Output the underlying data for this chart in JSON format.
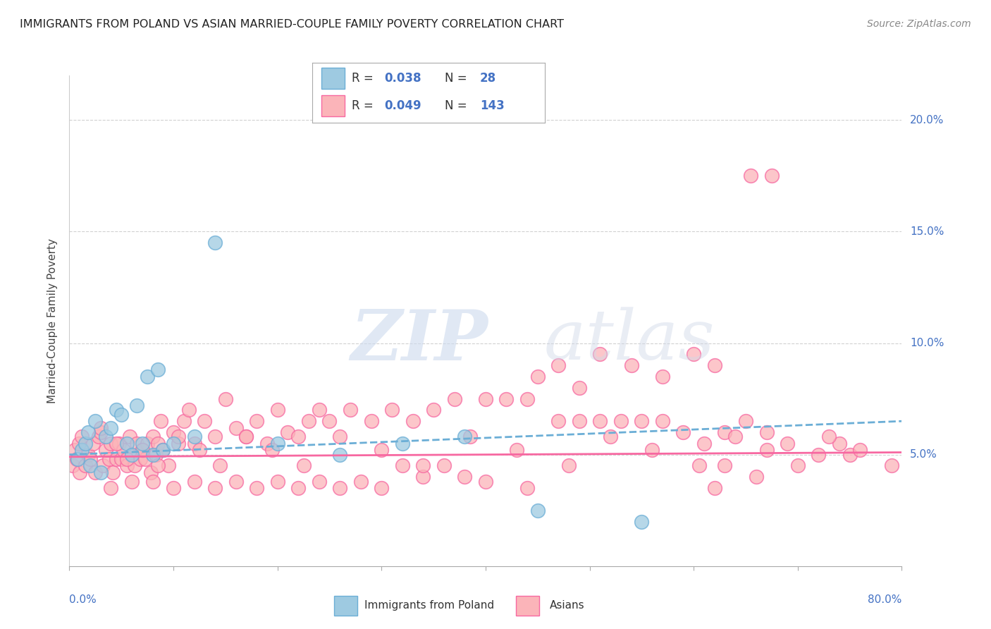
{
  "title": "IMMIGRANTS FROM POLAND VS ASIAN MARRIED-COUPLE FAMILY POVERTY CORRELATION CHART",
  "source": "Source: ZipAtlas.com",
  "ylabel": "Married-Couple Family Poverty",
  "xlim": [
    0.0,
    80.0
  ],
  "ylim": [
    0.0,
    22.0
  ],
  "yticks": [
    5.0,
    10.0,
    15.0,
    20.0
  ],
  "ytick_labels": [
    "5.0%",
    "10.0%",
    "15.0%",
    "20.0%"
  ],
  "color_poland": "#9ecae1",
  "color_poland_edge": "#6baed6",
  "color_asians": "#fbb4b9",
  "color_asians_edge": "#f768a1",
  "color_poland_line": "#6baed6",
  "color_asians_line": "#f768a1",
  "poland_x": [
    0.8,
    1.2,
    1.5,
    1.8,
    2.0,
    2.5,
    3.0,
    3.5,
    4.0,
    4.5,
    5.0,
    5.5,
    6.0,
    6.5,
    7.0,
    7.5,
    8.0,
    8.5,
    9.0,
    10.0,
    12.0,
    14.0,
    20.0,
    26.0,
    32.0,
    38.0,
    45.0,
    55.0
  ],
  "poland_y": [
    4.8,
    5.2,
    5.5,
    6.0,
    4.5,
    6.5,
    4.2,
    5.8,
    6.2,
    7.0,
    6.8,
    5.5,
    5.0,
    7.2,
    5.5,
    8.5,
    5.0,
    8.8,
    5.2,
    5.5,
    5.8,
    14.5,
    5.5,
    5.0,
    5.5,
    5.8,
    2.5,
    2.0
  ],
  "asians_x": [
    0.3,
    0.5,
    0.7,
    0.9,
    1.0,
    1.2,
    1.5,
    1.8,
    2.0,
    2.3,
    2.5,
    2.8,
    3.0,
    3.2,
    3.5,
    3.8,
    4.0,
    4.2,
    4.5,
    4.8,
    5.0,
    5.2,
    5.5,
    5.8,
    6.0,
    6.3,
    6.5,
    6.8,
    7.0,
    7.3,
    7.5,
    7.8,
    8.0,
    8.3,
    8.5,
    8.8,
    9.0,
    9.5,
    10.0,
    10.5,
    11.0,
    11.5,
    12.0,
    13.0,
    14.0,
    15.0,
    16.0,
    17.0,
    18.0,
    19.0,
    20.0,
    21.0,
    22.0,
    23.0,
    24.0,
    25.0,
    27.0,
    29.0,
    31.0,
    33.0,
    35.0,
    37.0,
    40.0,
    42.0,
    44.0,
    47.0,
    49.0,
    51.0,
    53.0,
    55.0,
    57.0,
    59.0,
    61.0,
    63.0,
    65.0,
    67.0,
    69.0,
    72.0,
    74.0,
    75.0,
    45.0,
    47.0,
    49.0,
    51.0,
    54.0,
    57.0,
    60.0,
    62.0,
    65.5,
    67.5,
    32.0,
    34.0,
    36.0,
    38.0,
    40.0,
    44.0,
    20.0,
    22.0,
    24.0,
    26.0,
    28.0,
    30.0,
    14.0,
    16.0,
    18.0,
    8.0,
    10.0,
    12.0,
    4.0,
    6.0,
    63.0,
    66.0,
    62.0,
    3.0,
    4.5,
    5.5,
    7.0,
    8.5,
    10.5,
    12.5,
    14.5,
    17.0,
    19.5,
    22.5,
    26.0,
    30.0,
    34.0,
    38.5,
    43.0,
    48.0,
    52.0,
    56.0,
    60.5,
    64.0,
    67.0,
    70.0,
    73.0,
    76.0,
    79.0
  ],
  "asians_y": [
    4.5,
    5.2,
    4.8,
    5.5,
    4.2,
    5.8,
    4.5,
    5.0,
    4.8,
    5.5,
    4.2,
    5.8,
    6.0,
    4.5,
    5.2,
    4.8,
    5.5,
    4.2,
    4.8,
    5.5,
    4.8,
    5.2,
    4.5,
    5.8,
    5.0,
    4.5,
    5.5,
    4.8,
    5.2,
    4.8,
    5.5,
    4.2,
    5.8,
    5.0,
    5.5,
    6.5,
    5.2,
    4.5,
    6.0,
    5.5,
    6.5,
    7.0,
    5.5,
    6.5,
    5.8,
    7.5,
    6.2,
    5.8,
    6.5,
    5.5,
    7.0,
    6.0,
    5.8,
    6.5,
    7.0,
    6.5,
    7.0,
    6.5,
    7.0,
    6.5,
    7.0,
    7.5,
    7.5,
    7.5,
    7.5,
    6.5,
    6.5,
    6.5,
    6.5,
    6.5,
    6.5,
    6.0,
    5.5,
    6.0,
    6.5,
    6.0,
    5.5,
    5.0,
    5.5,
    5.0,
    8.5,
    9.0,
    8.0,
    9.5,
    9.0,
    8.5,
    9.5,
    9.0,
    17.5,
    17.5,
    4.5,
    4.0,
    4.5,
    4.0,
    3.8,
    3.5,
    3.8,
    3.5,
    3.8,
    3.5,
    3.8,
    3.5,
    3.5,
    3.8,
    3.5,
    3.8,
    3.5,
    3.8,
    3.5,
    3.8,
    4.5,
    4.0,
    3.5,
    6.2,
    5.5,
    4.8,
    5.2,
    4.5,
    5.8,
    5.2,
    4.5,
    5.8,
    5.2,
    4.5,
    5.8,
    5.2,
    4.5,
    5.8,
    5.2,
    4.5,
    5.8,
    5.2,
    4.5,
    5.8,
    5.2,
    4.5,
    5.8,
    5.2,
    4.5
  ]
}
